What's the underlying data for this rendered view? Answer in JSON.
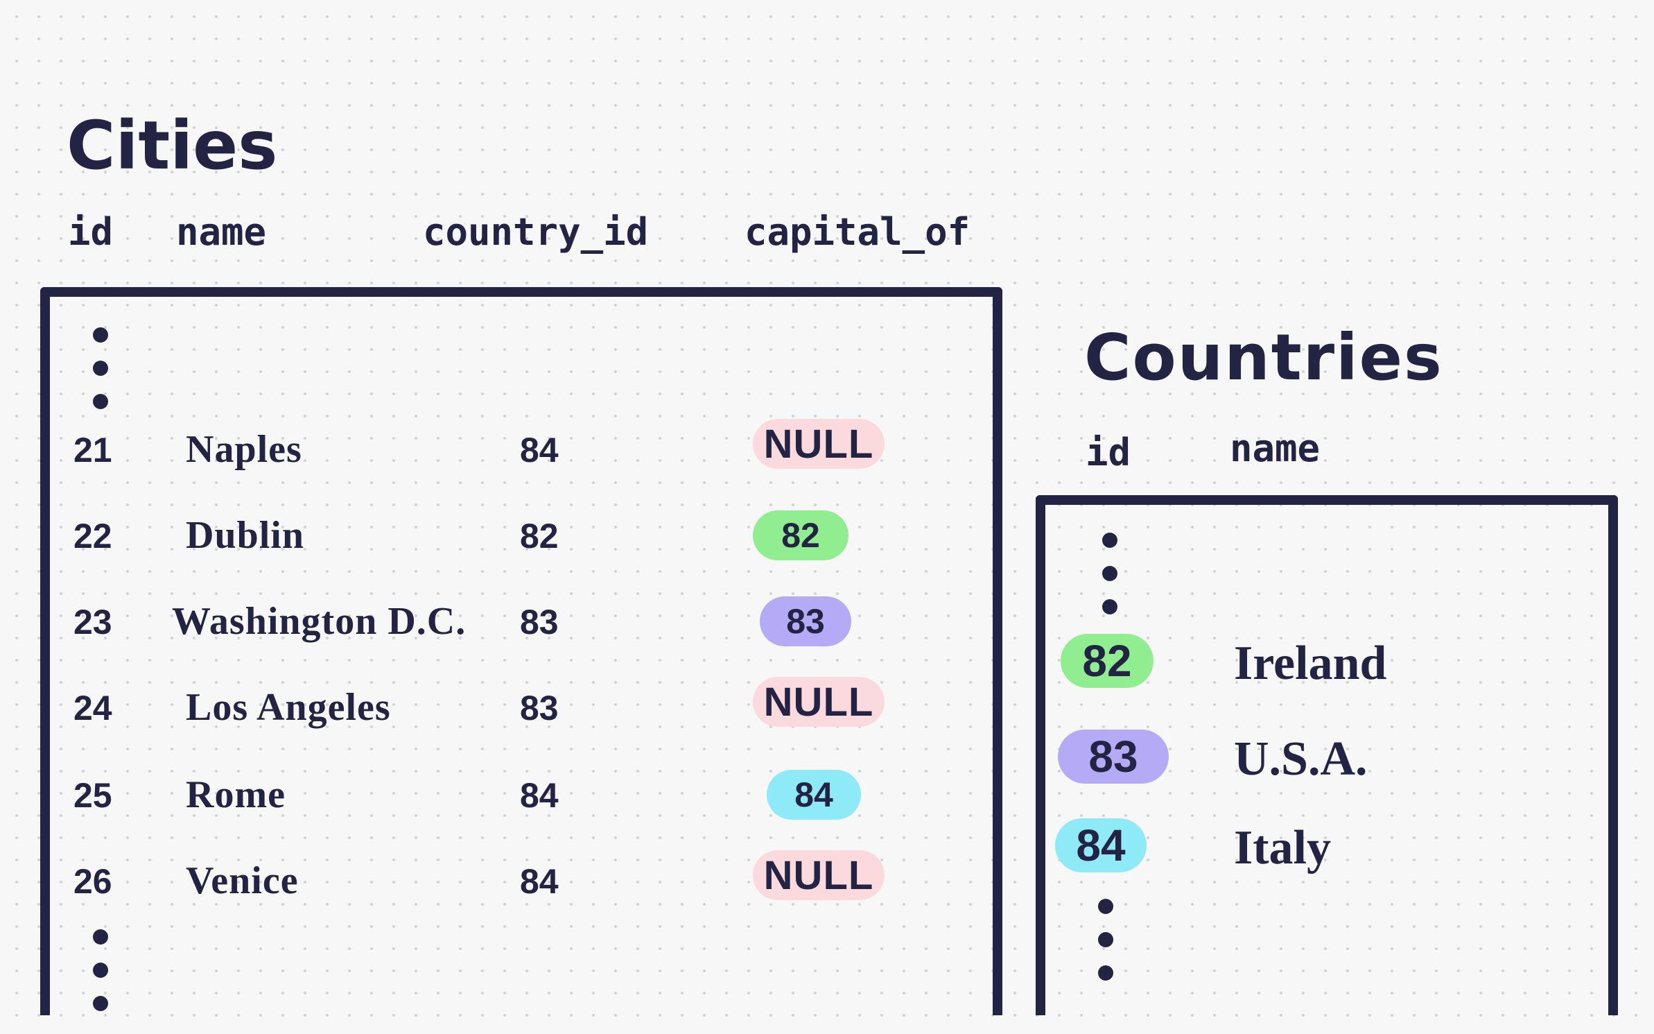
{
  "colors": {
    "ink": "#232444",
    "null_bg": "#fadadd",
    "green": "#90ee90",
    "purple": "#b4aaf5",
    "cyan": "#8eeaf7",
    "background": "#f7f7f7"
  },
  "cities": {
    "title": "Cities",
    "headers": {
      "id": "id",
      "name": "name",
      "country_id": "country_id",
      "capital_of": "capital_of"
    },
    "rows": [
      {
        "id": "21",
        "name": "Naples",
        "country_id": "84",
        "capital_of": "NULL",
        "capital_style": "null"
      },
      {
        "id": "22",
        "name": "Dublin",
        "country_id": "82",
        "capital_of": "82",
        "capital_style": "green"
      },
      {
        "id": "23",
        "name": "Washington D.C.",
        "country_id": "83",
        "capital_of": "83",
        "capital_style": "purple"
      },
      {
        "id": "24",
        "name": "Los Angeles",
        "country_id": "83",
        "capital_of": "NULL",
        "capital_style": "null"
      },
      {
        "id": "25",
        "name": "Rome",
        "country_id": "84",
        "capital_of": "84",
        "capital_style": "cyan"
      },
      {
        "id": "26",
        "name": "Venice",
        "country_id": "84",
        "capital_of": "NULL",
        "capital_style": "null"
      }
    ]
  },
  "countries": {
    "title": "Countries",
    "headers": {
      "id": "id",
      "name": "name"
    },
    "rows": [
      {
        "id": "82",
        "name": "Ireland",
        "id_style": "green"
      },
      {
        "id": "83",
        "name": "U.S.A.",
        "id_style": "purple"
      },
      {
        "id": "84",
        "name": "Italy",
        "id_style": "cyan"
      }
    ]
  }
}
